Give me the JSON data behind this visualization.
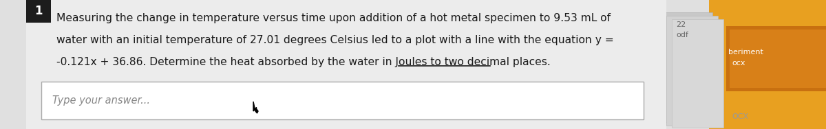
{
  "bg_color": "#e0e0e0",
  "main_text_line1": "Measuring the change in temperature versus time upon addition of a hot metal specimen to 9.53 mL of",
  "main_text_line2": "water with an initial temperature of 27.01 degrees Celsius led to a plot with a line with the equation y =",
  "main_text_line3_plain": "-0.121x + 36.86. Determine the heat absorbed by the water in Joules to ",
  "main_text_line3_underline": "two decimal places.",
  "answer_placeholder": "Type your answer...",
  "text_color": "#1a1a1a",
  "answer_box_color": "#ffffff",
  "answer_box_border": "#aaaaaa",
  "right_panel_text1": "22",
  "right_panel_text2": "odf",
  "right_panel_text3": "beriment",
  "right_panel_text4": "ocx",
  "right_panel_text5": "OCX",
  "font_size_main": 11.2,
  "font_size_answer": 10.5,
  "fig_width": 12.0,
  "fig_height": 1.88
}
